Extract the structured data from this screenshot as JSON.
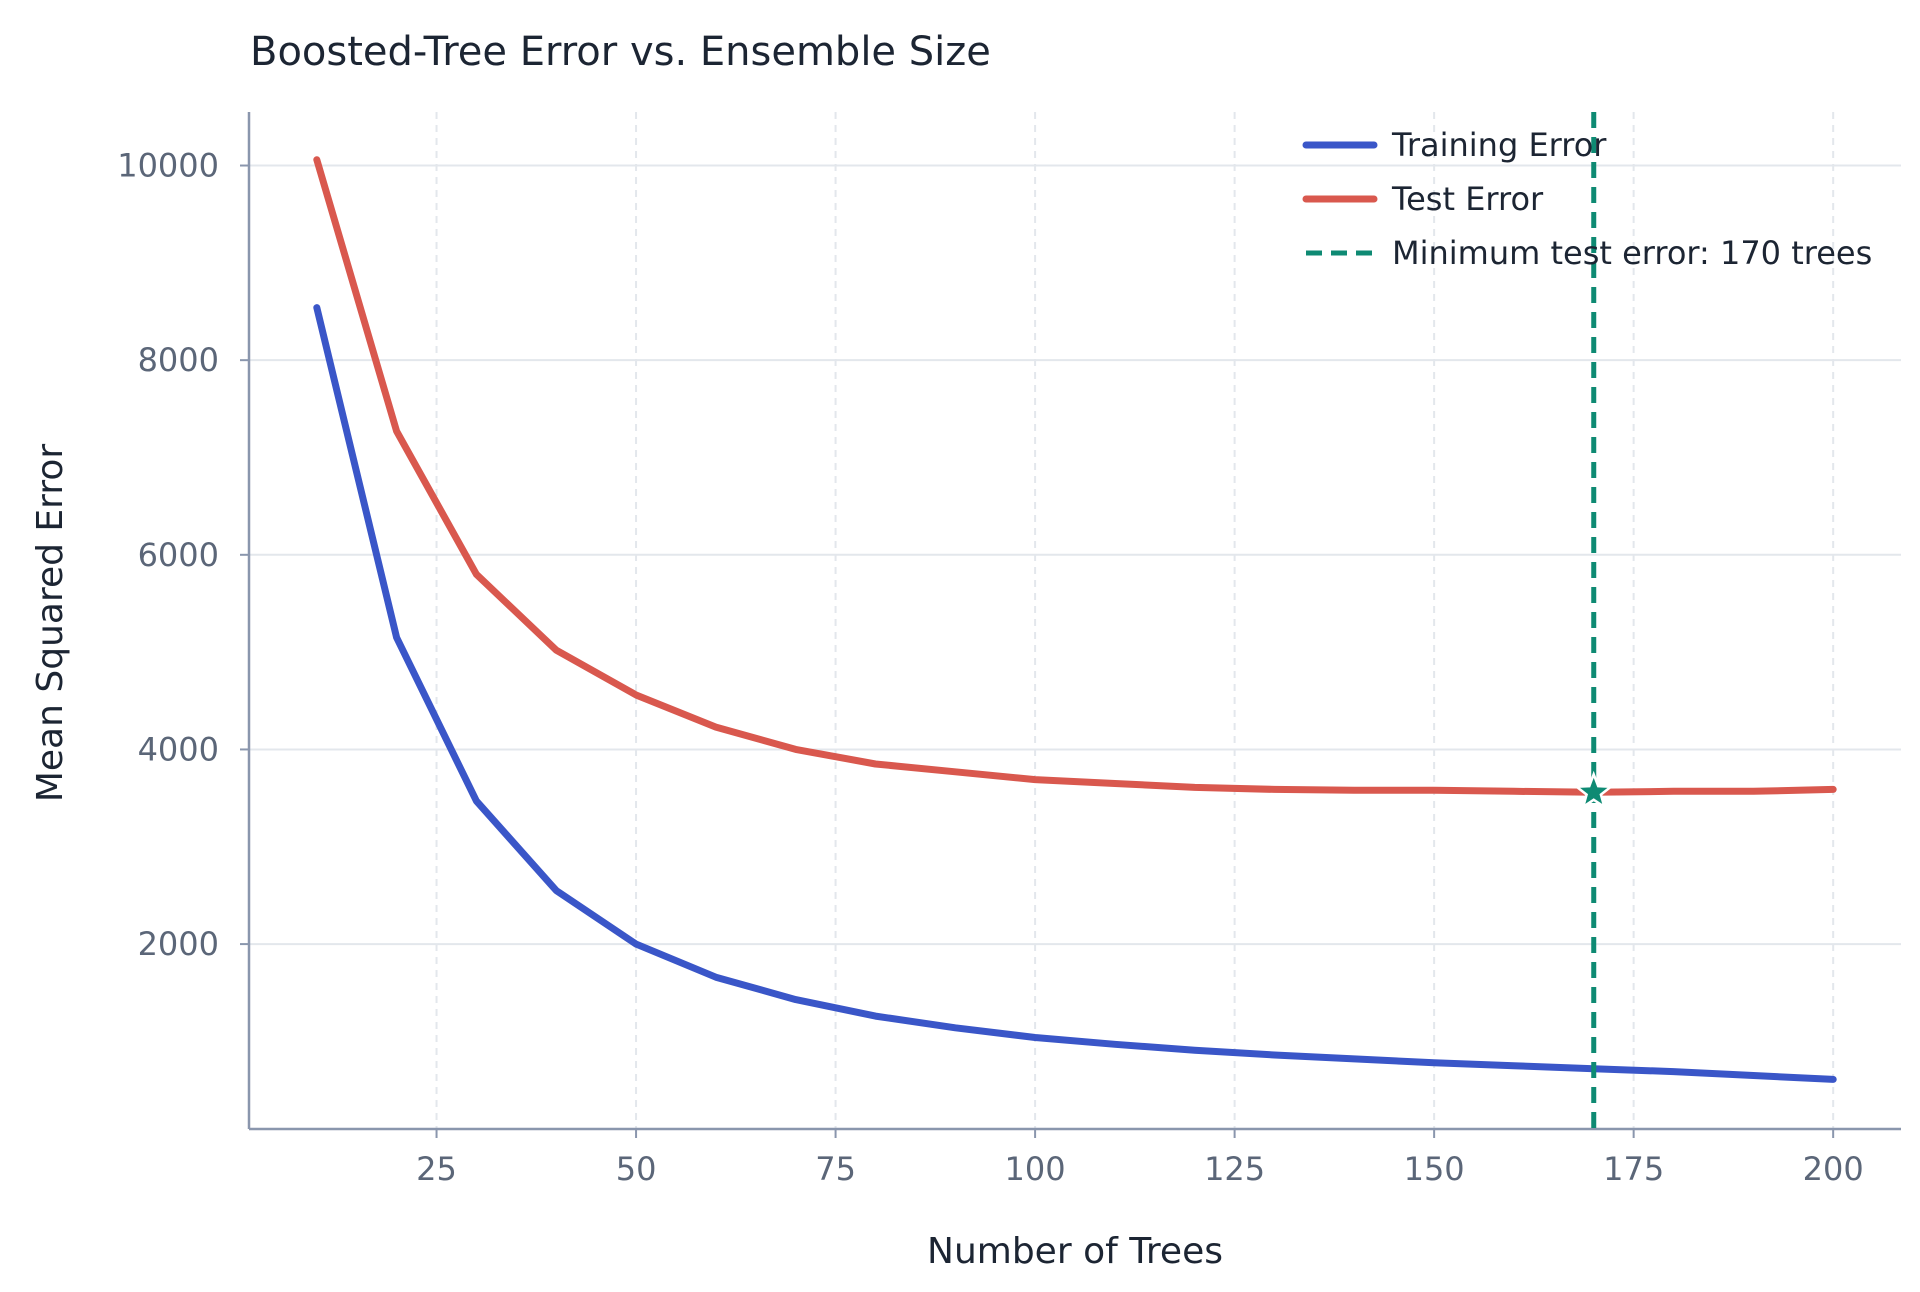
{
  "chart_data": {
    "type": "line",
    "title": "Boosted-Tree Error vs. Ensemble Size",
    "xlabel": "Number of Trees",
    "ylabel": "Mean Squared Error",
    "xlim": [
      1.5,
      208.5
    ],
    "ylim": [
      100,
      10550
    ],
    "x_ticks": [
      25,
      50,
      75,
      100,
      125,
      150,
      175,
      200
    ],
    "x_tick_labels": [
      "25",
      "50",
      "75",
      "100",
      "125",
      "150",
      "175",
      "200"
    ],
    "y_ticks": [
      2000,
      4000,
      6000,
      8000,
      10000
    ],
    "y_tick_labels": [
      "2000",
      "4000",
      "6000",
      "8000",
      "10000"
    ],
    "grid": true,
    "legend_position": "top-right",
    "x": [
      10,
      20,
      30,
      40,
      50,
      60,
      70,
      80,
      90,
      100,
      110,
      120,
      130,
      140,
      150,
      160,
      170,
      180,
      190,
      200
    ],
    "series": [
      {
        "name": "Training Error",
        "color": "#3a56c8",
        "values": [
          8540,
          5150,
          3470,
          2550,
          2000,
          1660,
          1430,
          1260,
          1140,
          1040,
          970,
          910,
          860,
          820,
          780,
          750,
          720,
          690,
          650,
          610
        ]
      },
      {
        "name": "Test Error",
        "color": "#d9584e",
        "values": [
          10060,
          7270,
          5800,
          5020,
          4560,
          4230,
          4000,
          3850,
          3770,
          3690,
          3650,
          3610,
          3590,
          3580,
          3580,
          3570,
          3560,
          3570,
          3570,
          3590
        ]
      }
    ],
    "reference_line": {
      "label": "Minimum test error: 170 trees",
      "x": 170,
      "y": 3560,
      "color": "#0e8a73",
      "style": "dashed",
      "marker": "star"
    }
  }
}
